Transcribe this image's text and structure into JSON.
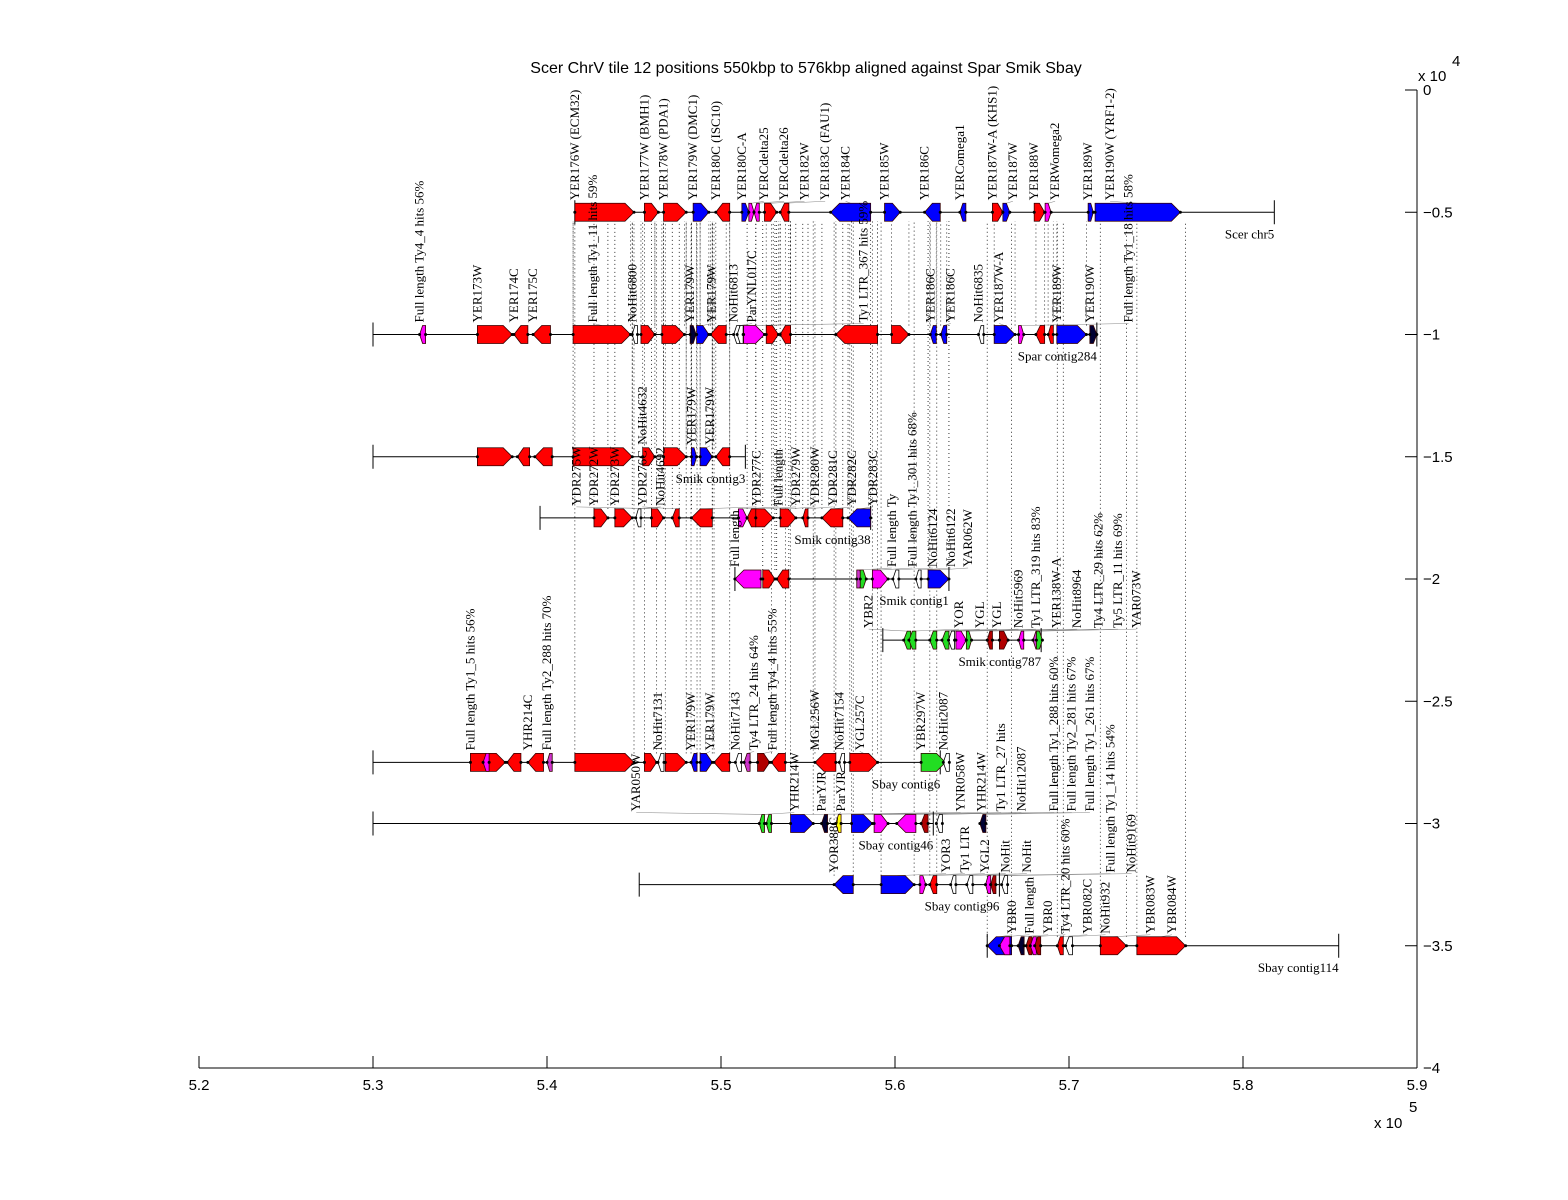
{
  "chart_data": {
    "type": "genome-alignment",
    "title": "Scer ChrV tile 12 positions 550kbp to 576kbp aligned against Spar Smik Sbay",
    "x_axis": {
      "range": [
        520,
        590
      ],
      "ticks": [
        520,
        530,
        540,
        550,
        560,
        570,
        580,
        590
      ],
      "tick_labels": [
        "5.2",
        "5.3",
        "5.4",
        "5.5",
        "5.6",
        "5.7",
        "5.8",
        "5.9"
      ],
      "exponent_label": "x 10",
      "exponent": "5"
    },
    "y_axis": {
      "range": [
        0,
        -4
      ],
      "ticks": [
        0,
        -0.5,
        -1,
        -1.5,
        -2,
        -2.5,
        -3,
        -3.5,
        -4
      ],
      "tick_labels": [
        "0",
        "−0.5",
        "−1",
        "−1.5",
        "−2",
        "−2.5",
        "−3",
        "−3.5",
        "−4"
      ],
      "exponent_label": "x 10",
      "exponent": "4",
      "position": "right"
    },
    "colors": {
      "r": "#ff0000",
      "b": "#0000ff",
      "m": "#ff00ff",
      "g": "#22dd22",
      "w": "#ffffff",
      "y": "#ffff00",
      "p": "#cc33cc",
      "d": "#b00000",
      "k": "#000033"
    },
    "tracks": [
      {
        "name": "Scer chr5",
        "y": -0.5,
        "start": 541.6,
        "end": 581.8,
        "features": [
          [
            541.6,
            545.0,
            "W",
            "r",
            "YER176W (ECM32)"
          ],
          [
            545.6,
            546.4,
            "W",
            "r",
            "YER177W (BMH1)"
          ],
          [
            546.7,
            548.0,
            "W",
            "r",
            "YER178W (PDA1)"
          ],
          [
            548.4,
            549.3,
            "W",
            "b",
            "YER179W (DMC1)"
          ],
          [
            549.7,
            550.5,
            "C",
            "r",
            "YER180C (ISC10)"
          ],
          [
            551.2,
            551.6,
            "W",
            "b",
            "YER180C-A"
          ],
          [
            551.6,
            551.9,
            "W",
            "m",
            "YERCdelta25"
          ],
          [
            551.9,
            552.2,
            "C",
            "m",
            "YERCdelta26"
          ],
          [
            552.5,
            553.2,
            "W",
            "r",
            "YER182W"
          ],
          [
            553.4,
            553.9,
            "C",
            "r",
            "YER183C (FAU1)"
          ],
          [
            556.3,
            558.6,
            "C",
            "b",
            "YER184C"
          ],
          [
            559.4,
            560.3,
            "W",
            "b",
            "YER185W"
          ],
          [
            561.7,
            562.6,
            "C",
            "b",
            "YER186C"
          ],
          [
            563.85,
            563.95,
            "C",
            "b",
            "YERComega1"
          ],
          [
            565.6,
            566.2,
            "W",
            "r",
            "YER187W-A (KHS1)"
          ],
          [
            566.2,
            566.6,
            "W",
            "b",
            "YER187W"
          ],
          [
            568.0,
            568.6,
            "W",
            "r",
            "YER188W"
          ],
          [
            568.7,
            568.9,
            "W",
            "m",
            "YERWomega2"
          ],
          [
            571.1,
            571.4,
            "W",
            "b",
            "YER189W"
          ],
          [
            571.5,
            576.4,
            "W",
            "b",
            "YER190W (YRF1-2)"
          ]
        ]
      },
      {
        "name": "Spar contig284",
        "y": -1,
        "start": 530.0,
        "end": 571.6,
        "features": [
          [
            532.8,
            532.9,
            "C",
            "m",
            "Full length Ty4_4 hits 56%"
          ],
          [
            536.0,
            538.0,
            "W",
            "r",
            "YER173W"
          ],
          [
            538.1,
            538.9,
            "C",
            "r",
            "YER174C"
          ],
          [
            539.2,
            540.2,
            "C",
            "r",
            "YER175C"
          ],
          [
            541.5,
            544.8,
            "W",
            "r",
            "Full length Ty1_11 hits 59%"
          ],
          [
            544.9,
            545.2,
            "C",
            "w",
            "NoHit6800"
          ],
          [
            545.4,
            546.2,
            "W",
            "r",
            ""
          ],
          [
            546.6,
            547.9,
            "W",
            "r",
            ""
          ],
          [
            548.3,
            548.5,
            "W",
            "k",
            "YER179W"
          ],
          [
            548.6,
            549.3,
            "W",
            "b",
            "YER179W"
          ],
          [
            549.4,
            550.3,
            "C",
            "r",
            ""
          ],
          [
            550.8,
            551.0,
            "C",
            "w",
            "NoHit6813"
          ],
          [
            551.0,
            551.2,
            "C",
            "w",
            "ParYNL017C"
          ],
          [
            551.3,
            552.5,
            "W",
            "m",
            "Ty1 LTR_367 hits 59%"
          ],
          [
            552.6,
            553.3,
            "W",
            "r",
            ""
          ],
          [
            553.4,
            554.0,
            "C",
            "r",
            ""
          ],
          [
            556.6,
            559.0,
            "C",
            "r",
            ""
          ],
          [
            559.8,
            560.8,
            "W",
            "r",
            ""
          ],
          [
            562.1,
            562.3,
            "C",
            "b",
            "YER186C"
          ],
          [
            562.7,
            562.9,
            "C",
            "b",
            "YER186C"
          ],
          [
            564.8,
            565.1,
            "C",
            "w",
            "NoHit6835"
          ],
          [
            565.7,
            566.9,
            "W",
            "b",
            "YER187W-A"
          ],
          [
            567.1,
            567.4,
            "W",
            "m",
            "Full length Ty1_18 hits 58%"
          ],
          [
            568.1,
            568.6,
            "C",
            "r",
            ""
          ],
          [
            568.8,
            569.1,
            "C",
            "r",
            ""
          ],
          [
            569.3,
            571.0,
            "W",
            "b",
            "YER189W"
          ],
          [
            571.2,
            571.6,
            "W",
            "k",
            "YER190W"
          ]
        ]
      },
      {
        "name": "Smik contig3",
        "y": -1.5,
        "start": 530.0,
        "end": 551.4,
        "features": [
          [
            536.0,
            538.0,
            "W",
            "r",
            ""
          ],
          [
            538.3,
            539.0,
            "C",
            "r",
            ""
          ],
          [
            539.3,
            540.3,
            "C",
            "r",
            ""
          ],
          [
            541.5,
            544.9,
            "W",
            "r",
            ""
          ],
          [
            545.5,
            546.2,
            "W",
            "r",
            "NoHit4632"
          ],
          [
            546.7,
            548.0,
            "W",
            "r",
            ""
          ],
          [
            548.3,
            548.6,
            "W",
            "b",
            "YER179W"
          ],
          [
            548.8,
            549.5,
            "W",
            "b",
            "YER179W"
          ],
          [
            549.7,
            550.5,
            "C",
            "r",
            ""
          ]
        ]
      },
      {
        "name": "Smik contig38",
        "y": -1.75,
        "start": 539.6,
        "end": 558.6,
        "features": [
          [
            542.7,
            543.5,
            "W",
            "r",
            "YDR272W"
          ],
          [
            543.9,
            544.9,
            "W",
            "r",
            "YDR273W"
          ],
          [
            545.1,
            545.4,
            "C",
            "w",
            "NoHit4692"
          ],
          [
            546.0,
            546.7,
            "W",
            "r",
            "YDR275W"
          ],
          [
            547.2,
            547.6,
            "C",
            "r",
            "YDR276C"
          ],
          [
            548.3,
            549.5,
            "C",
            "r",
            "YDR277C"
          ],
          [
            551.0,
            551.5,
            "W",
            "m",
            "Full length"
          ],
          [
            551.5,
            552.0,
            "C",
            "r",
            ""
          ],
          [
            552.0,
            553.0,
            "W",
            "r",
            "YDR279W"
          ],
          [
            553.4,
            554.3,
            "W",
            "r",
            "YDR280W"
          ],
          [
            554.7,
            555.0,
            "C",
            "r",
            "YDR281C"
          ],
          [
            555.8,
            557.0,
            "C",
            "r",
            "YDR282C"
          ],
          [
            557.3,
            558.6,
            "C",
            "b",
            "YDR283C"
          ]
        ]
      },
      {
        "name": "Smik contig1",
        "y": -2,
        "start": 550.8,
        "end": 563.1,
        "features": [
          [
            550.8,
            552.3,
            "C",
            "m",
            "Full length"
          ],
          [
            552.4,
            553.1,
            "W",
            "r",
            ""
          ],
          [
            553.2,
            553.9,
            "C",
            "r",
            ""
          ],
          [
            557.9,
            558.05,
            "W",
            "p",
            "Full length Ty"
          ],
          [
            558.05,
            558.3,
            "W",
            "g",
            ""
          ],
          [
            558.7,
            559.6,
            "W",
            "m",
            "Full length Ty1_301 hits 68%"
          ],
          [
            560.0,
            560.1,
            "C",
            "w",
            "NoHit6124"
          ],
          [
            561.2,
            561.5,
            "C",
            "w",
            "NoHit6122"
          ],
          [
            561.9,
            563.1,
            "W",
            "b",
            "YAR062W"
          ]
        ]
      },
      {
        "name": "Smik contig787",
        "y": -2.25,
        "start": 559.3,
        "end": 568.4,
        "features": [
          [
            560.5,
            560.9,
            "C",
            "g",
            "YBR2"
          ],
          [
            560.8,
            561.2,
            "C",
            "g",
            "YOR"
          ],
          [
            562.0,
            562.4,
            "C",
            "g",
            "YGL"
          ],
          [
            562.7,
            563.1,
            "C",
            "g",
            "YGL"
          ],
          [
            563.2,
            563.3,
            "C",
            "w",
            "NoHit5969"
          ],
          [
            563.5,
            564.1,
            "W",
            "m",
            "Ty1 LTR_319 hits 83%"
          ],
          [
            564.1,
            564.4,
            "W",
            "g",
            "YER138W-A"
          ],
          [
            565.3,
            565.6,
            "C",
            "d",
            "NoHit8964"
          ],
          [
            566.0,
            566.5,
            "W",
            "d",
            ""
          ],
          [
            567.1,
            567.4,
            "C",
            "m",
            "Ty4 LTR_29 hits 62%"
          ],
          [
            568.0,
            568.2,
            "C",
            "p",
            "Ty5 LTR_11 hits 69%"
          ],
          [
            568.2,
            568.4,
            "W",
            "g",
            "YAR073W"
          ]
        ]
      },
      {
        "name": "Sbay contig6",
        "y": -2.75,
        "start": 530.0,
        "end": 562.6,
        "features": [
          [
            535.6,
            537.6,
            "W",
            "r",
            "Full length Ty1_5 hits 56%"
          ],
          [
            536.4,
            536.6,
            "C",
            "m",
            ""
          ],
          [
            537.7,
            538.5,
            "C",
            "r",
            ""
          ],
          [
            538.9,
            539.8,
            "C",
            "r",
            "YHR214C"
          ],
          [
            540.0,
            540.3,
            "C",
            "p",
            "Full length Ty2_288 hits 70%"
          ],
          [
            541.6,
            545.0,
            "W",
            "r",
            ""
          ],
          [
            545.6,
            546.3,
            "W",
            "r",
            ""
          ],
          [
            546.5,
            546.6,
            "C",
            "w",
            "NoHit7131"
          ],
          [
            546.8,
            548.0,
            "W",
            "r",
            ""
          ],
          [
            548.4,
            548.5,
            "C",
            "b",
            "YER179W"
          ],
          [
            548.8,
            549.5,
            "W",
            "b",
            "YER179W"
          ],
          [
            549.6,
            550.5,
            "C",
            "r",
            ""
          ],
          [
            550.9,
            551.1,
            "C",
            "w",
            "NoHit7143"
          ],
          [
            551.4,
            551.6,
            "C",
            "p",
            "Ty4 LTR_24 hits 64%"
          ],
          [
            552.1,
            552.8,
            "W",
            "d",
            "Full length Ty4_4 hits 55%"
          ],
          [
            552.9,
            553.7,
            "C",
            "r",
            ""
          ],
          [
            555.4,
            556.6,
            "C",
            "r",
            "MGL256W"
          ],
          [
            556.8,
            557.1,
            "C",
            "w",
            "NoHit7154"
          ],
          [
            557.4,
            559.0,
            "W",
            "r",
            "YGL257C"
          ],
          [
            561.5,
            562.9,
            "W",
            "g",
            "YBR297W"
          ],
          [
            562.9,
            563.0,
            "C",
            "w",
            "NoHit2087"
          ]
        ]
      },
      {
        "name": "Sbay contig46",
        "y": -3,
        "start": 530.0,
        "end": 562.2,
        "features": [
          [
            552.2,
            552.5,
            "C",
            "g",
            "YHR214W"
          ],
          [
            552.6,
            552.9,
            "C",
            "g",
            "YAR050W"
          ],
          [
            554.0,
            555.3,
            "W",
            "b",
            "YNR058W"
          ],
          [
            555.9,
            556.0,
            "C",
            "k",
            "ParYJR"
          ],
          [
            556.6,
            556.9,
            "C",
            "y",
            "ParYJR"
          ],
          [
            557.5,
            558.7,
            "W",
            "b",
            "YHR214W"
          ],
          [
            558.8,
            559.6,
            "W",
            "m",
            "Full length Ty1_288 hits 60%"
          ],
          [
            560.1,
            561.2,
            "C",
            "m",
            "Full length Ty2_281 hits 67%"
          ],
          [
            561.5,
            561.9,
            "C",
            "d",
            "Ty1 LTR_27 hits"
          ],
          [
            562.5,
            562.6,
            "C",
            "w",
            "NoHit12087"
          ],
          [
            565.0,
            565.1,
            "C",
            "k",
            "Full length Ty1_261 hits 67%"
          ]
        ]
      },
      {
        "name": "Sbay contig96",
        "y": -3.25,
        "start": 545.3,
        "end": 566.0,
        "features": [
          [
            556.5,
            557.6,
            "C",
            "b",
            "YOR388C"
          ],
          [
            559.2,
            561.1,
            "W",
            "b",
            "YOR3"
          ],
          [
            561.5,
            561.7,
            "W",
            "m",
            "Ty1 LTR"
          ],
          [
            562.0,
            562.4,
            "C",
            "r",
            "YGL2"
          ],
          [
            563.2,
            563.5,
            "C",
            "w",
            "NoHit"
          ],
          [
            564.2,
            564.4,
            "C",
            "w",
            "NoHit"
          ],
          [
            565.2,
            565.5,
            "C",
            "m",
            "Full length Ty1_14 hits 54%"
          ],
          [
            565.5,
            565.8,
            "C",
            "d",
            ""
          ],
          [
            566.2,
            566.4,
            "C",
            "w",
            "NoHit9169"
          ]
        ]
      },
      {
        "name": "Sbay contig114",
        "y": -3.5,
        "start": 565.3,
        "end": 585.5,
        "features": [
          [
            565.3,
            566.7,
            "C",
            "b",
            "YBR0"
          ],
          [
            566.0,
            566.6,
            "C",
            "m",
            "Full length"
          ],
          [
            567.2,
            567.3,
            "C",
            "k",
            "YBR0"
          ],
          [
            567.6,
            567.8,
            "C",
            "d",
            ""
          ],
          [
            567.9,
            568.0,
            "C",
            "m",
            "Ty4 LTR_20 hits 60%"
          ],
          [
            568.1,
            568.3,
            "C",
            "d",
            ""
          ],
          [
            569.4,
            569.6,
            "C",
            "r",
            "YBR082C"
          ],
          [
            569.8,
            570.2,
            "C",
            "w",
            "NoHit932"
          ],
          [
            571.8,
            573.3,
            "W",
            "r",
            "YBR083W"
          ],
          [
            573.9,
            576.7,
            "W",
            "r",
            "YBR084W"
          ]
        ]
      }
    ]
  }
}
